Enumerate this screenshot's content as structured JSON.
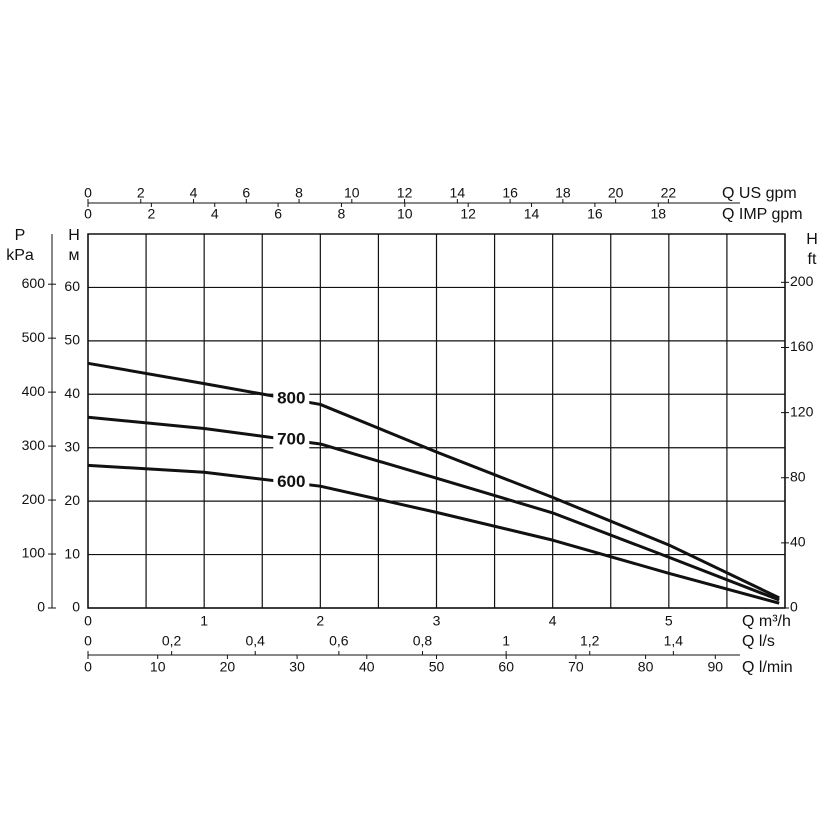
{
  "chart_data": {
    "type": "line",
    "x_label": "Q m³/h",
    "xlim": [
      0,
      6
    ],
    "xticks": [
      0,
      1,
      2,
      3,
      4,
      5
    ],
    "xgrid": [
      0,
      0.5,
      1,
      1.5,
      2,
      2.5,
      3,
      3.5,
      4,
      4.5,
      5,
      5.5,
      6
    ],
    "y_label": [
      "H",
      "м"
    ],
    "ylim": [
      0,
      70
    ],
    "yticks": [
      0,
      10,
      20,
      30,
      40,
      50,
      60
    ],
    "grid": true,
    "x": [
      0,
      1,
      2,
      3,
      4,
      5,
      5.95
    ],
    "series": [
      {
        "name": "800",
        "color": "#111111",
        "values": [
          45.8,
          42,
          38.1,
          29.2,
          20.7,
          11.8,
          1.9
        ]
      },
      {
        "name": "700",
        "color": "#111111",
        "values": [
          35.7,
          33.6,
          30.7,
          24.3,
          17.8,
          9.5,
          1.5
        ]
      },
      {
        "name": "600",
        "color": "#111111",
        "values": [
          26.7,
          25.4,
          22.8,
          17.9,
          12.7,
          6.5,
          0.9
        ]
      }
    ],
    "extra_axes": [
      {
        "position": "top",
        "label": "Q US gpm",
        "lim": [
          0,
          26.42
        ],
        "ticks": [
          0,
          2,
          4,
          6,
          8,
          10,
          12,
          14,
          16,
          18,
          20,
          22
        ]
      },
      {
        "position": "top-inner",
        "label": "Q IMP gpm",
        "lim": [
          0,
          22
        ],
        "ticks": [
          0,
          2,
          4,
          6,
          8,
          10,
          12,
          14,
          16,
          18
        ]
      },
      {
        "position": "bottom-upper",
        "label": "Q l/s",
        "lim": [
          0,
          1.667
        ],
        "ticks": [
          0,
          {
            "value": 0.2,
            "label": "0,2"
          },
          {
            "value": 0.4,
            "label": "0,4"
          },
          {
            "value": 0.6,
            "label": "0,6"
          },
          {
            "value": 0.8,
            "label": "0,8"
          },
          1,
          {
            "value": 1.2,
            "label": "1,2"
          },
          {
            "value": 1.4,
            "label": "1,4"
          }
        ]
      },
      {
        "position": "bottom-lower",
        "label": "Q l/min",
        "lim": [
          0,
          100
        ],
        "ticks": [
          0,
          10,
          20,
          30,
          40,
          50,
          60,
          70,
          80,
          90
        ]
      },
      {
        "position": "left",
        "label": [
          "P",
          "kPa"
        ],
        "lim": [
          0,
          693
        ],
        "ticks": [
          0,
          100,
          200,
          300,
          400,
          500,
          600
        ]
      },
      {
        "position": "right",
        "label": [
          "H",
          "ft"
        ],
        "lim": [
          0,
          229.7
        ],
        "ticks": [
          0,
          40,
          80,
          120,
          160,
          200
        ]
      }
    ]
  }
}
